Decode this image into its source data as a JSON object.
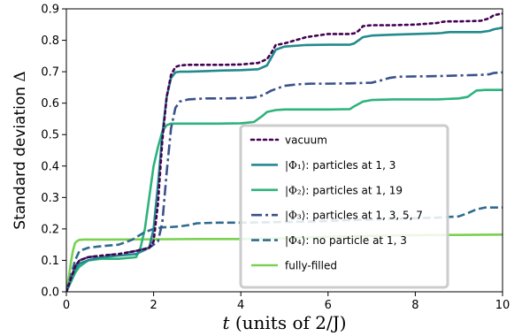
{
  "chart_data": {
    "type": "line",
    "xlabel_math": "t",
    "xlabel_rest": " (units of 2/J)",
    "ylabel_text": "Standard deviation ",
    "ylabel_symbol": "Δ",
    "xlim": [
      0,
      10
    ],
    "ylim": [
      0,
      0.9
    ],
    "xticks": [
      0,
      2,
      4,
      6,
      8,
      10
    ],
    "yticks": [
      0.0,
      0.1,
      0.2,
      0.3,
      0.4,
      0.5,
      0.6,
      0.7,
      0.8,
      0.9
    ],
    "xtick_labels": [
      "0",
      "2",
      "4",
      "6",
      "8",
      "10"
    ],
    "ytick_labels": [
      "0.0",
      "0.1",
      "0.2",
      "0.3",
      "0.4",
      "0.5",
      "0.6",
      "0.7",
      "0.8",
      "0.9"
    ],
    "grid": false,
    "legend_position": "center-right",
    "series": [
      {
        "name": "vacuum",
        "color": "#440154",
        "dash": "dotted",
        "x": [
          0,
          0.1,
          0.2,
          0.3,
          0.5,
          0.8,
          1.2,
          1.6,
          1.9,
          2.0,
          2.1,
          2.2,
          2.3,
          2.4,
          2.5,
          2.6,
          2.8,
          3.2,
          3.6,
          4.0,
          4.4,
          4.6,
          4.7,
          4.8,
          5.0,
          5.5,
          6.0,
          6.5,
          6.6,
          6.7,
          6.8,
          7.0,
          7.5,
          8.0,
          8.5,
          8.6,
          8.7,
          8.8,
          9.0,
          9.5,
          9.7,
          9.8,
          10.0
        ],
        "y": [
          0,
          0.04,
          0.08,
          0.1,
          0.11,
          0.115,
          0.12,
          0.13,
          0.14,
          0.16,
          0.28,
          0.48,
          0.62,
          0.69,
          0.715,
          0.72,
          0.722,
          0.722,
          0.722,
          0.723,
          0.728,
          0.74,
          0.76,
          0.785,
          0.79,
          0.81,
          0.82,
          0.82,
          0.822,
          0.83,
          0.845,
          0.848,
          0.848,
          0.85,
          0.855,
          0.858,
          0.86,
          0.86,
          0.86,
          0.862,
          0.87,
          0.88,
          0.885
        ]
      },
      {
        "name": "|Φ1⟩: particles at 1, 3",
        "color": "#238a8d",
        "dash": "solid",
        "x": [
          0,
          0.1,
          0.2,
          0.3,
          0.5,
          0.8,
          1.2,
          1.6,
          1.9,
          2.0,
          2.1,
          2.2,
          2.3,
          2.4,
          2.5,
          2.6,
          2.8,
          3.2,
          3.6,
          4.0,
          4.4,
          4.6,
          4.7,
          4.8,
          5.0,
          5.5,
          6.0,
          6.5,
          6.6,
          6.7,
          6.8,
          7.0,
          7.5,
          8.0,
          8.5,
          8.6,
          8.7,
          8.8,
          9.0,
          9.5,
          9.7,
          9.8,
          10.0
        ],
        "y": [
          0,
          0.04,
          0.07,
          0.09,
          0.1,
          0.11,
          0.115,
          0.12,
          0.14,
          0.2,
          0.34,
          0.5,
          0.62,
          0.68,
          0.698,
          0.7,
          0.7,
          0.702,
          0.704,
          0.705,
          0.708,
          0.72,
          0.745,
          0.77,
          0.78,
          0.785,
          0.786,
          0.786,
          0.79,
          0.8,
          0.81,
          0.815,
          0.818,
          0.82,
          0.822,
          0.823,
          0.825,
          0.826,
          0.826,
          0.826,
          0.83,
          0.835,
          0.84
        ]
      },
      {
        "name": "|Φ2⟩: particles at 1, 19",
        "color": "#2db37b",
        "dash": "solid",
        "x": [
          0,
          0.1,
          0.2,
          0.3,
          0.5,
          0.8,
          1.2,
          1.6,
          1.7,
          1.8,
          1.9,
          2.0,
          2.1,
          2.2,
          2.3,
          2.4,
          2.6,
          3.0,
          3.5,
          4.0,
          4.3,
          4.5,
          4.6,
          4.8,
          5.0,
          5.5,
          6.0,
          6.5,
          6.6,
          6.8,
          7.0,
          7.5,
          8.0,
          8.5,
          9.0,
          9.2,
          9.3,
          9.4,
          9.6,
          10.0
        ],
        "y": [
          0,
          0.03,
          0.06,
          0.08,
          0.1,
          0.105,
          0.105,
          0.11,
          0.14,
          0.2,
          0.3,
          0.4,
          0.46,
          0.51,
          0.53,
          0.535,
          0.535,
          0.535,
          0.535,
          0.536,
          0.54,
          0.56,
          0.572,
          0.578,
          0.58,
          0.58,
          0.58,
          0.581,
          0.59,
          0.605,
          0.61,
          0.612,
          0.612,
          0.612,
          0.615,
          0.62,
          0.63,
          0.64,
          0.642,
          0.642
        ]
      },
      {
        "name": "|Φ3⟩: particles at 1, 3, 5, 7",
        "color": "#3b518b",
        "dash": "dashdot",
        "x": [
          0,
          0.1,
          0.2,
          0.3,
          0.5,
          0.8,
          1.2,
          1.6,
          1.9,
          2.0,
          2.1,
          2.2,
          2.3,
          2.4,
          2.5,
          2.6,
          2.8,
          3.2,
          3.6,
          4.0,
          4.3,
          4.5,
          4.7,
          5.0,
          5.3,
          5.6,
          6.0,
          6.5,
          7.0,
          7.2,
          7.4,
          7.6,
          8.0,
          8.5,
          9.0,
          9.5,
          9.7,
          9.8,
          10.0
        ],
        "y": [
          0,
          0.04,
          0.08,
          0.1,
          0.11,
          0.115,
          0.12,
          0.13,
          0.14,
          0.15,
          0.16,
          0.22,
          0.38,
          0.52,
          0.585,
          0.605,
          0.612,
          0.615,
          0.615,
          0.616,
          0.618,
          0.625,
          0.64,
          0.655,
          0.66,
          0.662,
          0.662,
          0.663,
          0.665,
          0.672,
          0.68,
          0.684,
          0.685,
          0.686,
          0.688,
          0.69,
          0.692,
          0.696,
          0.698
        ]
      },
      {
        "name": "|Φ4⟩: no particle at 1, 3",
        "color": "#2f6b8e",
        "dash": "dashed",
        "x": [
          0,
          0.1,
          0.2,
          0.3,
          0.5,
          0.8,
          1.2,
          1.5,
          1.8,
          2.0,
          2.2,
          2.4,
          2.6,
          2.8,
          3.0,
          3.5,
          4.0,
          4.5,
          5.0,
          5.5,
          6.0,
          6.5,
          7.0,
          7.5,
          8.0,
          8.5,
          9.0,
          9.2,
          9.4,
          9.6,
          10.0
        ],
        "y": [
          0,
          0.05,
          0.1,
          0.13,
          0.14,
          0.145,
          0.15,
          0.165,
          0.19,
          0.2,
          0.205,
          0.206,
          0.208,
          0.212,
          0.218,
          0.22,
          0.22,
          0.221,
          0.222,
          0.223,
          0.225,
          0.228,
          0.23,
          0.232,
          0.234,
          0.236,
          0.24,
          0.25,
          0.262,
          0.268,
          0.268
        ]
      },
      {
        "name": "fully-filled",
        "color": "#7ad151",
        "dash": "solid",
        "x": [
          0,
          0.05,
          0.1,
          0.15,
          0.2,
          0.25,
          0.3,
          0.4,
          0.6,
          1.0,
          2.0,
          3.0,
          4.0,
          5.0,
          6.0,
          7.0,
          8.0,
          9.0,
          10.0
        ],
        "y": [
          0,
          0.04,
          0.09,
          0.13,
          0.155,
          0.162,
          0.165,
          0.166,
          0.166,
          0.166,
          0.167,
          0.168,
          0.168,
          0.17,
          0.175,
          0.178,
          0.18,
          0.181,
          0.182
        ]
      }
    ]
  }
}
